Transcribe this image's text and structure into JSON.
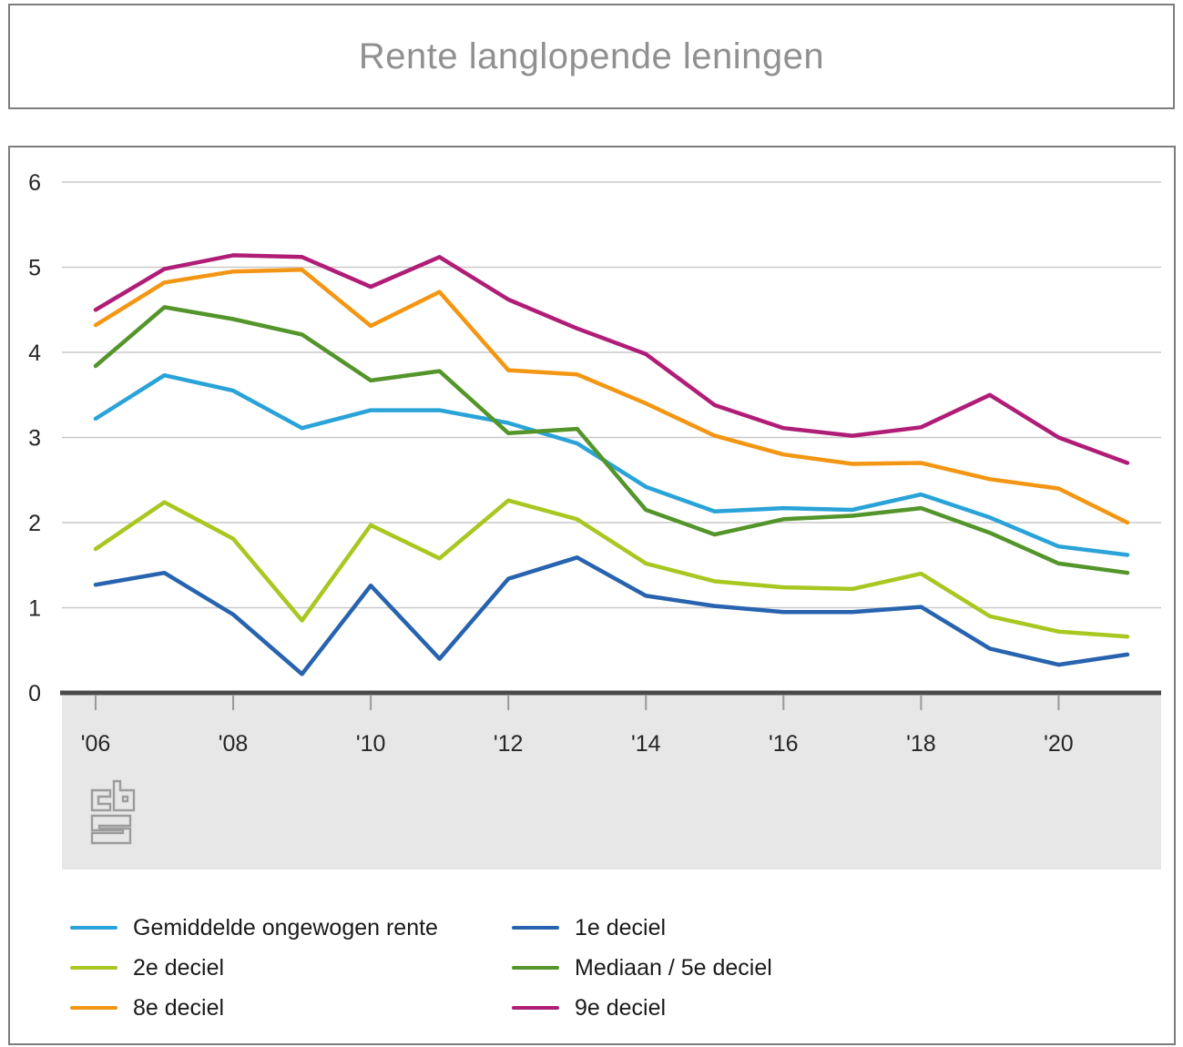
{
  "header": {
    "title": "Rente langlopende leningen"
  },
  "branding": {
    "logo": "cbs-logo"
  },
  "colors": {
    "title_text": "#909090",
    "box_border": "#7d7d7d",
    "grid": "#c9c9c9",
    "axis": "#4a4a4a",
    "tick": "#9a9a9a",
    "band": "#e7e7e7",
    "axis_label": "#262626",
    "legend_text": "#1a1a1a",
    "logo": "#9c9c9c",
    "background": "#ffffff"
  },
  "chart_data": {
    "type": "line",
    "title": "Rente langlopende leningen",
    "xlabel": "",
    "ylabel": "",
    "ylim": [
      0,
      6
    ],
    "grid": true,
    "legend_position": "bottom-two-columns",
    "x": [
      2006,
      2007,
      2008,
      2009,
      2010,
      2011,
      2012,
      2013,
      2014,
      2015,
      2016,
      2017,
      2018,
      2019,
      2020,
      2021
    ],
    "x_ticks": [
      {
        "year": 2006,
        "label": "'06"
      },
      {
        "year": 2008,
        "label": "'08"
      },
      {
        "year": 2010,
        "label": "'10"
      },
      {
        "year": 2012,
        "label": "'12"
      },
      {
        "year": 2014,
        "label": "'14"
      },
      {
        "year": 2016,
        "label": "'16"
      },
      {
        "year": 2018,
        "label": "'18"
      },
      {
        "year": 2020,
        "label": "'20"
      }
    ],
    "y_ticks": [
      0,
      1,
      2,
      3,
      4,
      5,
      6
    ],
    "series": [
      {
        "name": "Gemiddelde ongewogen rente",
        "color": "#29a3d8",
        "values": [
          3.22,
          3.73,
          3.55,
          3.11,
          3.32,
          3.32,
          3.17,
          2.93,
          2.42,
          2.13,
          2.17,
          2.15,
          2.33,
          2.06,
          1.72,
          1.62
        ]
      },
      {
        "name": "2e deciel",
        "color": "#a9c721",
        "values": [
          1.69,
          2.24,
          1.81,
          0.85,
          1.97,
          1.58,
          2.26,
          2.04,
          1.52,
          1.31,
          1.24,
          1.22,
          1.4,
          0.9,
          0.72,
          0.66
        ]
      },
      {
        "name": "8e deciel",
        "color": "#f39613",
        "values": [
          4.32,
          4.82,
          4.95,
          4.97,
          4.31,
          4.71,
          3.79,
          3.74,
          3.4,
          3.02,
          2.8,
          2.69,
          2.7,
          2.51,
          2.4,
          2.0
        ]
      },
      {
        "name": "1e deciel",
        "color": "#2763ae",
        "values": [
          1.27,
          1.41,
          0.92,
          0.22,
          1.26,
          0.4,
          1.34,
          1.59,
          1.14,
          1.02,
          0.95,
          0.95,
          1.01,
          0.52,
          0.33,
          0.45
        ]
      },
      {
        "name": "Mediaan / 5e deciel",
        "color": "#54952b",
        "values": [
          3.84,
          4.53,
          4.39,
          4.21,
          3.67,
          3.78,
          3.05,
          3.1,
          2.15,
          1.86,
          2.04,
          2.08,
          2.17,
          1.88,
          1.52,
          1.41
        ]
      },
      {
        "name": "9e deciel",
        "color": "#b01d77",
        "values": [
          4.5,
          4.98,
          5.14,
          5.12,
          4.77,
          5.12,
          4.62,
          4.28,
          3.98,
          3.38,
          3.11,
          3.02,
          3.12,
          3.5,
          3.0,
          2.7
        ]
      }
    ]
  }
}
